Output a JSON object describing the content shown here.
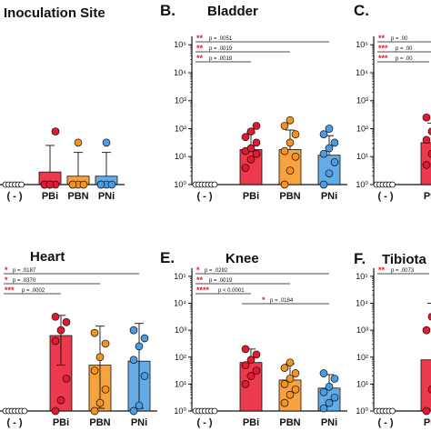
{
  "y_tick_labels": [
    "10⁰",
    "10¹",
    "10²",
    "10³",
    "10⁴",
    "10⁵"
  ],
  "colors": {
    "PBi": "#e8162e",
    "PBN": "#f6921e",
    "PNi": "#4a9de2",
    "neg": "#ffffff",
    "line": "#111111"
  },
  "charts": [
    {
      "letter": "",
      "title": "Inoculation Site",
      "categories": [
        "( - )",
        "PBi",
        "PBN",
        "PNi"
      ],
      "show_y_ticks": false,
      "ylim_log10": [
        0,
        5.3
      ],
      "means_log10": [
        0,
        0.45,
        0.3,
        0.3
      ],
      "err_upper_log10": [
        0,
        1.4,
        1.15,
        1.15
      ],
      "points_log10": [
        [
          0,
          0,
          0,
          0,
          0,
          0
        ],
        [
          0,
          0,
          0,
          0,
          0,
          1.9
        ],
        [
          0,
          0,
          0,
          0,
          1.5
        ],
        [
          0,
          0,
          0,
          0,
          1.5
        ]
      ],
      "comparisons": []
    },
    {
      "letter": "B.",
      "title": "Bladder",
      "categories": [
        "( - )",
        "PBi",
        "PBN",
        "PNi"
      ],
      "show_y_ticks": true,
      "ylim_log10": [
        0,
        5.3
      ],
      "means_log10": [
        0,
        1.25,
        1.25,
        1.05
      ],
      "err_upper_log10": [
        0,
        1.85,
        1.95,
        1.75
      ],
      "points_log10": [
        [
          0,
          0,
          0,
          0,
          0,
          0,
          0
        ],
        [
          0.6,
          0.9,
          1.1,
          1.2,
          1.3,
          1.5,
          1.7,
          1.9,
          2.1
        ],
        [
          0,
          0.5,
          1,
          1.2,
          1.5,
          1.8,
          2.1,
          2.3
        ],
        [
          0,
          0.4,
          0.8,
          1.1,
          1.3,
          1.5,
          1.8,
          2.0
        ]
      ],
      "comparisons": [
        {
          "stars": "**",
          "p": "p = .0051",
          "to": 3
        },
        {
          "stars": "**",
          "p": "p = .0019",
          "to": 2
        },
        {
          "stars": "**",
          "p": "p = .0019",
          "to": 1
        }
      ]
    },
    {
      "letter": "C.",
      "title": "",
      "categories": [
        "( - )",
        "PBi"
      ],
      "show_y_ticks": true,
      "ylim_log10": [
        0,
        5.3
      ],
      "means_log10": [
        0,
        1.5
      ],
      "err_upper_log10": [
        0,
        2.2
      ],
      "points_log10": [
        [
          0,
          0,
          0,
          0,
          0,
          0
        ],
        [
          0.7,
          1.1,
          1.3,
          1.6,
          1.9,
          2.2,
          2.4
        ]
      ],
      "comparisons": [
        {
          "stars": "**",
          "p": "p = .00",
          "to": 3
        },
        {
          "stars": "***",
          "p": "p = .00",
          "to": 2
        },
        {
          "stars": "***",
          "p": "p = .00",
          "to": 1
        }
      ]
    },
    {
      "letter": "",
      "title": "Heart",
      "categories": [
        "( - )",
        "PBi",
        "PBN",
        "PNi"
      ],
      "show_y_ticks": false,
      "ylim_log10": [
        0,
        5.3
      ],
      "means_log10": [
        0,
        2.8,
        1.7,
        1.85
      ],
      "err_upper_log10": [
        0,
        3.55,
        3.15,
        3.25
      ],
      "err_lower_log10": [
        0,
        1.7,
        0.1,
        0.1
      ],
      "points_log10": [
        [
          0,
          0,
          0,
          0,
          0,
          0,
          0
        ],
        [
          0,
          0.4,
          1.2,
          2.6,
          3.0,
          3.3,
          3.5
        ],
        [
          0,
          0.3,
          0.8,
          1.5,
          2.0,
          2.5,
          2.9
        ],
        [
          0,
          0.2,
          1.3,
          1.9,
          2.4,
          2.7,
          3.0
        ]
      ],
      "comparisons": [
        {
          "stars": "*",
          "p": "p = .0187",
          "to": 3
        },
        {
          "stars": "*",
          "p": "p = .0370",
          "to": 2
        },
        {
          "stars": "***",
          "p": "p = .0002",
          "to": 1
        }
      ]
    },
    {
      "letter": "E.",
      "title": "Knee",
      "categories": [
        "( - )",
        "PBi",
        "PBN",
        "PNi"
      ],
      "show_y_ticks": true,
      "ylim_log10": [
        0,
        5.3
      ],
      "means_log10": [
        0,
        1.8,
        1.15,
        0.85
      ],
      "err_upper_log10": [
        0,
        2.3,
        1.75,
        1.35
      ],
      "points_log10": [
        [
          0,
          0,
          0,
          0,
          0,
          0,
          0
        ],
        [
          1.0,
          1.3,
          1.5,
          1.7,
          1.9,
          2.1,
          2.3
        ],
        [
          0.3,
          0.6,
          0.8,
          1.0,
          1.2,
          1.4,
          1.6,
          1.8
        ],
        [
          0.1,
          0.3,
          0.5,
          0.7,
          0.9,
          1.2,
          1.4
        ]
      ],
      "comparisons": [
        {
          "stars": "*",
          "p": "p = .0292",
          "from": 0,
          "to": 3
        },
        {
          "stars": "**",
          "p": "p = .0019",
          "from": 0,
          "to": 2
        },
        {
          "stars": "****",
          "p": "p < 0.0001",
          "from": 0,
          "to": 1
        },
        {
          "stars": "*",
          "p": "p = .0184",
          "from": 1,
          "to": 3
        }
      ]
    },
    {
      "letter": "F.",
      "title": "Tibiota",
      "categories": [
        "( - )",
        "PBi"
      ],
      "show_y_ticks": true,
      "ylim_log10": [
        0,
        5.3
      ],
      "means_log10": [
        0,
        1.9
      ],
      "err_upper_log10": [
        0,
        4.0
      ],
      "points_log10": [
        [
          0,
          0,
          0,
          0,
          0,
          0
        ],
        [
          0,
          0.8,
          2.3,
          3.0,
          3.5,
          4.1
        ]
      ],
      "comparisons": [
        {
          "stars": "**",
          "p": "p = .0073",
          "to": 1
        }
      ]
    }
  ]
}
